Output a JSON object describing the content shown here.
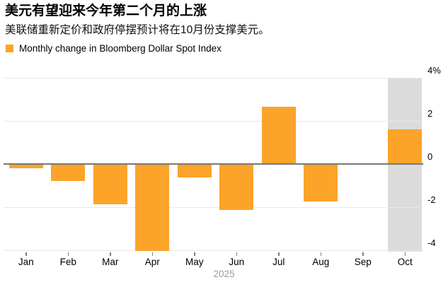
{
  "chart_data": {
    "type": "bar",
    "title": "美元有望迎来今年第二个月的上涨",
    "subtitle": "美联储重新定价和政府停摆预计将在10月份支撑美元。",
    "legend_label": "Monthly change in Bloomberg Dollar Spot Index",
    "legend_position": "top-left",
    "unit": "%",
    "categories": [
      "Jan",
      "Feb",
      "Mar",
      "Apr",
      "May",
      "Jun",
      "Jul",
      "Aug",
      "Sep",
      "Oct"
    ],
    "values": [
      -0.2,
      -0.8,
      -1.9,
      -4.05,
      -0.65,
      -2.15,
      2.65,
      -1.75,
      -0.05,
      1.6
    ],
    "x_axis_year": "2025",
    "y_ticks": [
      {
        "value": 4,
        "label": "4%"
      },
      {
        "value": 2,
        "label": "2"
      },
      {
        "value": 0,
        "label": "0"
      },
      {
        "value": -2,
        "label": "-2"
      },
      {
        "value": -4,
        "label": "-4"
      }
    ],
    "ylim": [
      -4.1,
      4
    ],
    "grid": true,
    "zero_line": true,
    "highlight": {
      "category": "Oct"
    },
    "colors": {
      "bar": "#FCA32A",
      "highlight_band": "#DBDBDB",
      "grid_line": "#E8E8E8",
      "zero_line": "#76787A",
      "tick": "#7F7F7F",
      "axis_text": "#000000",
      "year_text": "#9B9B9B"
    }
  }
}
